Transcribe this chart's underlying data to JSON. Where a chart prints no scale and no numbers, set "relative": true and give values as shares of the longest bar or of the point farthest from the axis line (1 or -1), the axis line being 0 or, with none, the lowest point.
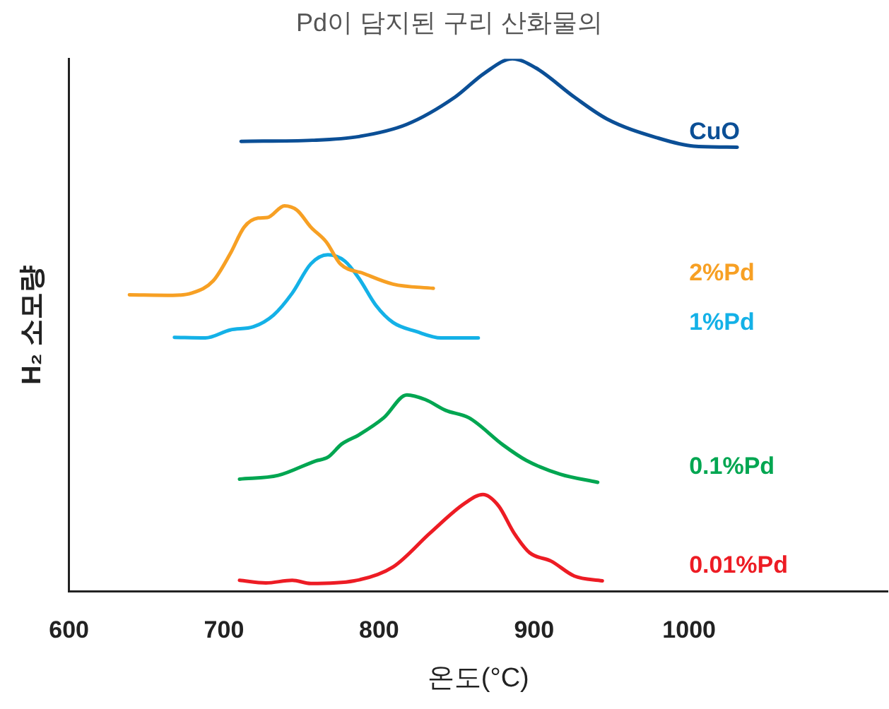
{
  "chart_data": {
    "type": "line",
    "title": "Pd이 담지된 구리 산화물의",
    "xlabel": "온도(°C)",
    "ylabel": "H₂ 소모량",
    "relative": true,
    "xlim": [
      600,
      1128
    ],
    "xticks": [
      600,
      700,
      800,
      900,
      1000
    ],
    "grid": false,
    "legend": false,
    "marker": "none",
    "line_style": "solid",
    "series": [
      {
        "name": "CuO",
        "color": "#0b4f96",
        "x": [
          711,
          757,
          787,
          818,
          849,
          868,
          886,
          901,
          926,
          947,
          979,
          1003,
          1031
        ],
        "values": [
          0.845,
          0.847,
          0.854,
          0.877,
          0.928,
          0.973,
          1.0,
          0.983,
          0.928,
          0.887,
          0.852,
          0.836,
          0.834
        ]
      },
      {
        "name": "2%Pd",
        "color": "#f7a024",
        "x": [
          639,
          667,
          679,
          693,
          704,
          713,
          722,
          728,
          739,
          747,
          756,
          766,
          775,
          790,
          809,
          835
        ],
        "values": [
          0.557,
          0.556,
          0.56,
          0.583,
          0.634,
          0.684,
          0.701,
          0.702,
          0.724,
          0.716,
          0.684,
          0.656,
          0.615,
          0.597,
          0.577,
          0.569
        ]
      },
      {
        "name": "1%Pd",
        "color": "#14b1e7",
        "x": [
          668,
          688,
          704,
          719,
          732,
          744,
          756,
          767,
          778,
          787,
          798,
          809,
          824,
          840,
          864
        ],
        "values": [
          0.477,
          0.476,
          0.491,
          0.497,
          0.519,
          0.56,
          0.615,
          0.632,
          0.62,
          0.588,
          0.537,
          0.505,
          0.488,
          0.476,
          0.476
        ]
      },
      {
        "name": "0.1%Pd",
        "color": "#00a651",
        "x": [
          710,
          735,
          759,
          767,
          776,
          787,
          803,
          818,
          830,
          843,
          858,
          880,
          895,
          917,
          941
        ],
        "values": [
          0.211,
          0.218,
          0.245,
          0.252,
          0.277,
          0.294,
          0.326,
          0.369,
          0.36,
          0.34,
          0.326,
          0.275,
          0.246,
          0.22,
          0.205
        ]
      },
      {
        "name": "0.01%Pd",
        "color": "#ed1c24",
        "x": [
          710,
          727,
          744,
          756,
          784,
          809,
          833,
          855,
          867,
          877,
          887,
          897,
          911,
          926,
          944
        ],
        "values": [
          0.021,
          0.016,
          0.021,
          0.015,
          0.02,
          0.046,
          0.11,
          0.165,
          0.182,
          0.161,
          0.11,
          0.073,
          0.057,
          0.029,
          0.02
        ]
      }
    ]
  }
}
